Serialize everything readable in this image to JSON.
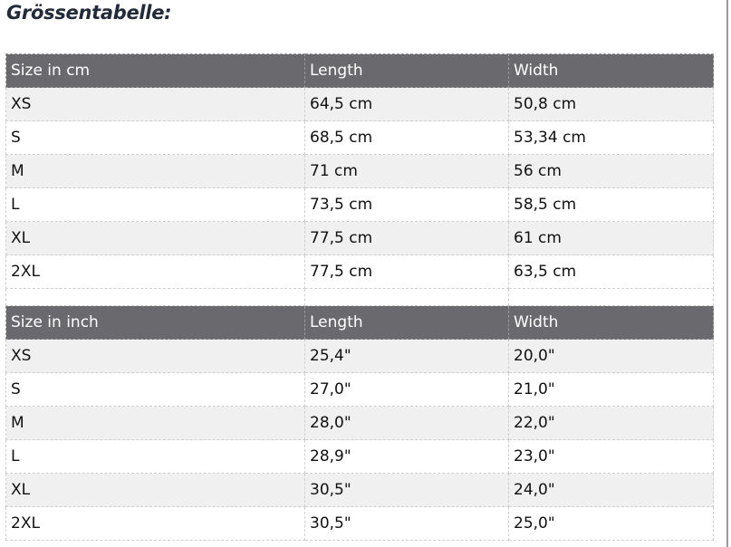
{
  "title": "Grössentabelle:",
  "tables": [
    {
      "headers": [
        "Size in cm",
        "Length",
        "Width"
      ],
      "rows": [
        [
          "XS",
          "64,5 cm",
          "50,8 cm"
        ],
        [
          "S",
          "68,5 cm",
          "53,34 cm"
        ],
        [
          "M",
          "71 cm",
          "56 cm"
        ],
        [
          "L",
          "73,5 cm",
          "58,5 cm"
        ],
        [
          "XL",
          "77,5 cm",
          "61 cm"
        ],
        [
          "2XL",
          "77,5 cm",
          "63,5 cm"
        ]
      ]
    },
    {
      "headers": [
        "Size in inch",
        "Length",
        "Width"
      ],
      "rows": [
        [
          "XS",
          "25,4\"",
          "20,0\""
        ],
        [
          "S",
          "27,0\"",
          "21,0\""
        ],
        [
          "M",
          "28,0\"",
          "22,0\""
        ],
        [
          "L",
          "28,9\"",
          "23,0\""
        ],
        [
          "XL",
          "30,5\"",
          "24,0\""
        ],
        [
          "2XL",
          "30,5\"",
          "25,0\""
        ]
      ]
    }
  ]
}
